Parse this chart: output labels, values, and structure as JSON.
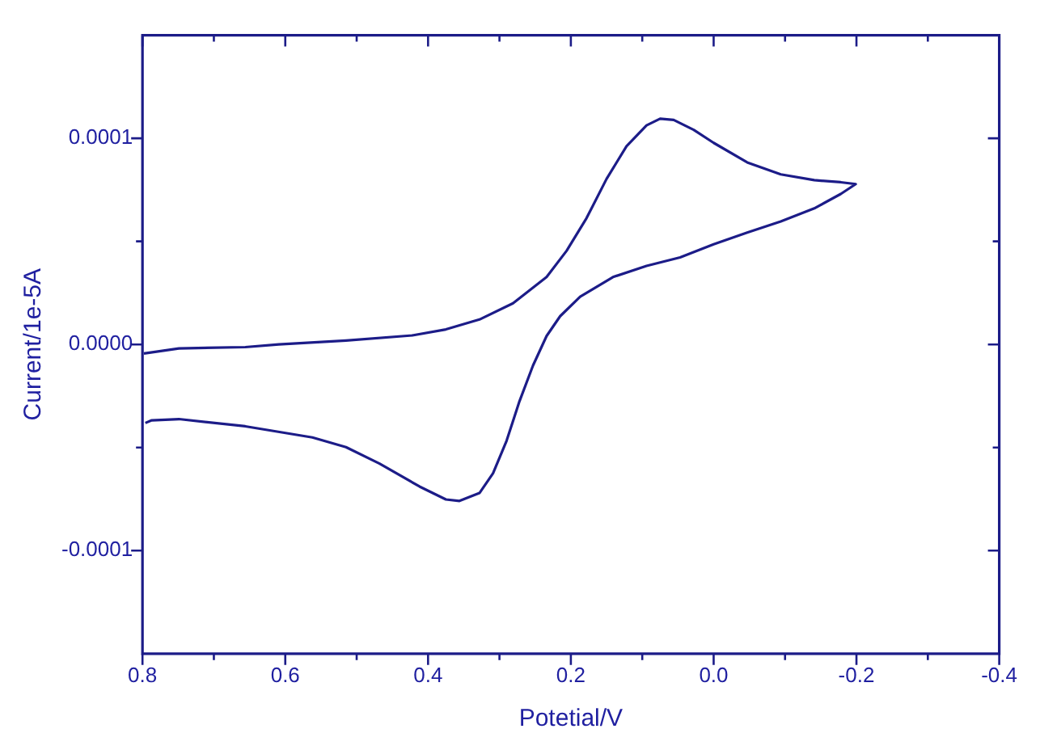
{
  "chart_data": {
    "type": "line",
    "xlabel": "Potetial/V",
    "ylabel": "Current/1e-5A",
    "xlim": [
      0.8,
      -0.4
    ],
    "ylim": [
      -0.00015,
      0.00015
    ],
    "xticks": [
      0.8,
      {
        "value": 0.7,
        "label": null
      },
      0.6,
      {
        "value": 0.5,
        "label": null
      },
      0.4,
      {
        "value": 0.3,
        "label": null
      },
      0.2,
      {
        "value": 0.1,
        "label": null
      },
      {
        "value": 0,
        "label": "0.0"
      },
      {
        "value": -0.1,
        "label": null
      },
      -0.2,
      {
        "value": -0.3,
        "label": null
      },
      -0.4
    ],
    "yticks": [
      {
        "value": -0.0001,
        "label": "-0.0001"
      },
      {
        "value": -5e-05,
        "label": null
      },
      {
        "value": 0,
        "label": "0.0000"
      },
      {
        "value": 5e-05,
        "label": null
      },
      {
        "value": 0.0001,
        "label": "0.0001"
      }
    ],
    "grid": false,
    "legend": false,
    "marker": "none",
    "line_style": "solid",
    "series": [
      {
        "color": "#1c1c88",
        "x": [
          0.798,
          0.749,
          0.656,
          0.609,
          0.515,
          0.422,
          0.375,
          0.328,
          0.281,
          0.234,
          0.206,
          0.178,
          0.15,
          0.122,
          0.094,
          0.075,
          0.056,
          0.028,
          0.0,
          -0.047,
          -0.094,
          -0.141,
          -0.178,
          -0.199,
          -0.178,
          -0.141,
          -0.094,
          -0.047,
          0.0,
          0.047,
          0.094,
          0.141,
          0.187,
          0.215,
          0.234,
          0.253,
          0.272,
          0.29,
          0.309,
          0.328,
          0.356,
          0.375,
          0.412,
          0.468,
          0.515,
          0.562,
          0.656,
          0.749,
          0.787,
          0.796
        ],
        "values": [
          -4.4e-06,
          -1.9e-06,
          -1.3e-06,
          0.0,
          1.9e-06,
          4.4e-06,
          7.3e-06,
          1.21e-05,
          2e-05,
          3.27e-05,
          4.54e-05,
          6.13e-05,
          8.03e-05,
          9.62e-05,
          0.0001063,
          0.0001095,
          0.0001089,
          0.0001041,
          9.78e-05,
          8.83e-05,
          8.25e-05,
          7.97e-05,
          7.87e-05,
          7.78e-05,
          7.3e-05,
          6.6e-05,
          5.97e-05,
          5.43e-05,
          4.86e-05,
          4.22e-05,
          3.81e-05,
          3.27e-05,
          2.32e-05,
          1.37e-05,
          4.1e-06,
          -1.02e-05,
          -2.76e-05,
          -4.67e-05,
          -6.25e-05,
          -7.21e-05,
          -7.59e-05,
          -7.52e-05,
          -6.89e-05,
          -5.78e-05,
          -4.98e-05,
          -4.51e-05,
          -3.97e-05,
          -3.62e-05,
          -3.68e-05,
          -3.81e-05
        ]
      }
    ]
  }
}
